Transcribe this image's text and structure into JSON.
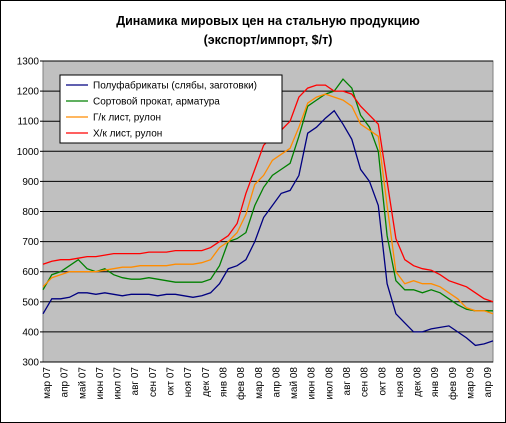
{
  "chart_data": {
    "type": "line",
    "title": "Динамика мировых цен на стальную продукцию",
    "subtitle": "(экспорт/импорт, $/т)",
    "categories": [
      "мар 07",
      null,
      "апр 07",
      null,
      "май 07",
      null,
      "июн 07",
      null,
      "июл 07",
      null,
      "авг 07",
      null,
      "сен 07",
      null,
      "окт 07",
      null,
      "ноя 07",
      null,
      "дек 07",
      null,
      "янв 08",
      null,
      "фев 08",
      null,
      "мар 08",
      null,
      "апр 08",
      null,
      "май 08",
      null,
      "июн 08",
      null,
      "июл 08",
      null,
      "авг 08",
      null,
      "сен 08",
      null,
      "окт 08",
      null,
      "ноя 08",
      null,
      "дек 08",
      null,
      "янв 09",
      null,
      "фев 09",
      null,
      "мар 09",
      null,
      "апр 09",
      null
    ],
    "series": [
      {
        "name": "Полуфабрикаты (слябы, заготовки)",
        "color": "#000080",
        "values": [
          460,
          510,
          510,
          515,
          530,
          530,
          525,
          530,
          525,
          520,
          525,
          525,
          525,
          520,
          525,
          525,
          520,
          515,
          520,
          530,
          560,
          610,
          620,
          640,
          700,
          780,
          820,
          860,
          870,
          920,
          1060,
          1080,
          1110,
          1135,
          1090,
          1040,
          940,
          900,
          820,
          560,
          460,
          430,
          400,
          400,
          410,
          415,
          420,
          400,
          380,
          355,
          360,
          370
        ]
      },
      {
        "name": "Сортовой прокат, арматура",
        "color": "#008000",
        "values": [
          540,
          590,
          600,
          620,
          640,
          610,
          600,
          610,
          590,
          580,
          575,
          575,
          580,
          575,
          570,
          565,
          565,
          565,
          565,
          575,
          620,
          700,
          710,
          730,
          820,
          880,
          920,
          940,
          960,
          1050,
          1150,
          1170,
          1190,
          1200,
          1240,
          1210,
          1120,
          1080,
          1000,
          720,
          570,
          540,
          540,
          530,
          540,
          530,
          510,
          490,
          475,
          470,
          470,
          470
        ]
      },
      {
        "name": "Г/к лист, рулон",
        "color": "#ff8c00",
        "values": [
          550,
          580,
          590,
          600,
          600,
          600,
          600,
          605,
          610,
          615,
          615,
          620,
          620,
          620,
          620,
          625,
          625,
          625,
          630,
          640,
          680,
          700,
          730,
          790,
          890,
          920,
          970,
          990,
          1010,
          1080,
          1160,
          1180,
          1190,
          1180,
          1170,
          1150,
          1090,
          1070,
          1050,
          820,
          600,
          560,
          570,
          560,
          560,
          550,
          530,
          510,
          480,
          470,
          470,
          460
        ]
      },
      {
        "name": "Х/к лист, рулон",
        "color": "#ff0000",
        "values": [
          625,
          635,
          640,
          640,
          645,
          650,
          650,
          655,
          660,
          660,
          660,
          660,
          665,
          665,
          665,
          670,
          670,
          670,
          670,
          680,
          700,
          720,
          760,
          860,
          940,
          1020,
          1050,
          1070,
          1100,
          1180,
          1210,
          1220,
          1220,
          1200,
          1200,
          1190,
          1150,
          1120,
          1090,
          900,
          710,
          640,
          620,
          610,
          605,
          590,
          570,
          560,
          550,
          530,
          510,
          500
        ]
      }
    ],
    "ylim": [
      300,
      1300
    ],
    "yticks": [
      300,
      400,
      500,
      600,
      700,
      800,
      900,
      1000,
      1100,
      1200,
      1300
    ],
    "grid": true,
    "legend": "top-left"
  }
}
